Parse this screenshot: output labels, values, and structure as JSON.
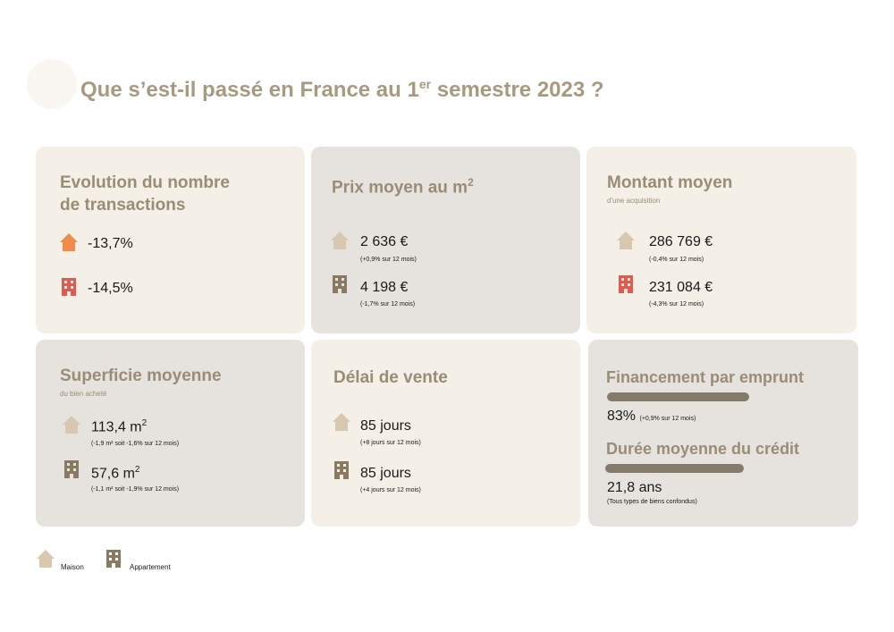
{
  "page": {
    "title": "Que s’est-il passé en France au 1",
    "title_sup": "er",
    "title_rest": " semestre 2023 ?"
  },
  "colors": {
    "house_orange": "#f08b4c",
    "flat_red": "#e05a4f",
    "beige_icon": "#d8c8b0",
    "brown_icon": "#8a7a62",
    "title": "#a89a80",
    "bar": "#857b6b"
  },
  "transactions": {
    "title_line1": "Evolution du nombre",
    "title_line2": "de transactions",
    "house_value": "-13,7%",
    "flat_value": "-14,5%"
  },
  "prix": {
    "title": "Prix moyen au m",
    "title_sup": "2",
    "house_value": "2 636 €",
    "house_note": "(+0,9% sur 12 mois)",
    "flat_value": "4 198 €",
    "flat_note": "(-1,7% sur 12 mois)"
  },
  "montant": {
    "title": "Montant moyen",
    "subtitle": "d'une acquisition",
    "house_value": "286 769 €",
    "house_note": "(-0,4% sur 12 mois)",
    "flat_value": "231 084 €",
    "flat_note": "(-4,3% sur 12 mois)"
  },
  "superficie": {
    "title": "Superficie moyenne",
    "subtitle": "du bien acheté",
    "house_value": "113,4 m",
    "house_value_sup": "2",
    "house_note": "(-1,9 m² soit -1,6% sur 12 mois)",
    "flat_value": "57,6 m",
    "flat_value_sup": "2",
    "flat_note": "(-1,1 m² soit -1,9% sur 12 mois)"
  },
  "delai": {
    "title": "Délai de vente",
    "house_value": "85 jours",
    "house_note": "(+8 jours sur 12 mois)",
    "flat_value": "85 jours",
    "flat_note": "(+4 jours sur 12 mois)"
  },
  "financement": {
    "title": "Financement par emprunt",
    "progress_percent": 83,
    "value": "83%",
    "note": "(+0,9% sur 12 mois)",
    "duree_title": "Durée moyenne du crédit",
    "duree_value": "21,8 ans",
    "duree_note": "(Tous types de biens confondus)"
  },
  "legend": {
    "house_label": "Maison",
    "flat_label": "Appartement"
  }
}
